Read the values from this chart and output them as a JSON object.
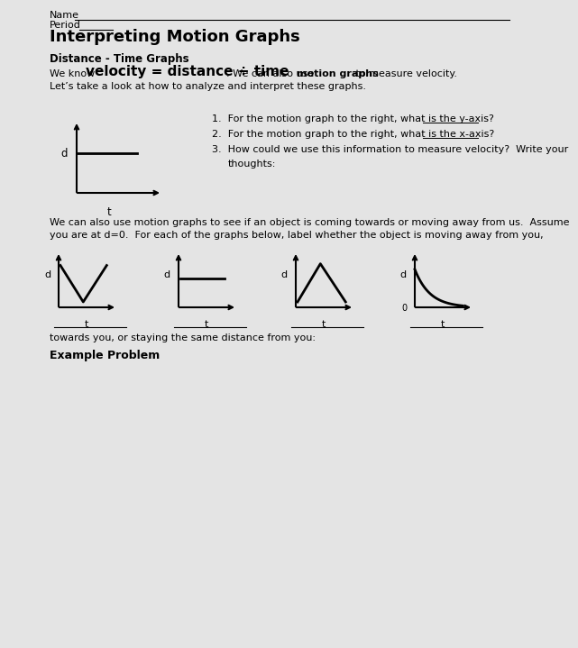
{
  "bg_color": "#e4e4e4",
  "title": "Interpreting Motion Graphs",
  "section1_label": "Distance - Time Graphs",
  "para2_line1": "We can also use motion graphs to see if an object is coming towards or moving away from us.  Assume",
  "para2_line2": "you are at d=0.  For each of the graphs below, label whether the object is moving away from you,",
  "label_below": "towards you, or staying the same distance from you:",
  "example": "Example Problem",
  "q1": "1.  For the motion graph to the right, what is the y-axis?",
  "q2": "2.  For the motion graph to the right, what is the x-axis?",
  "q3a": "3.  How could we use this information to measure velocity?  Write your",
  "q3b": "thoughts:"
}
